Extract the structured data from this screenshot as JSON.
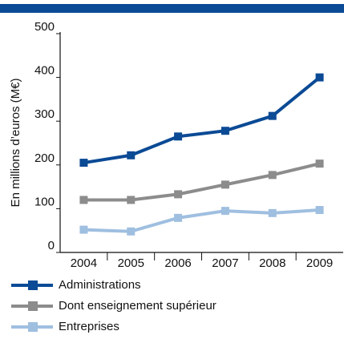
{
  "chart_data": {
    "type": "line",
    "ylabel": "En millions d’euros (M€)",
    "categories": [
      "2004",
      "2005",
      "2006",
      "2007",
      "2008",
      "2009"
    ],
    "series": [
      {
        "name": "Administrations",
        "color": "#0b4a95",
        "values": [
          205,
          222,
          265,
          278,
          312,
          400
        ]
      },
      {
        "name": "Dont enseignement supérieur",
        "color": "#8c8c8c",
        "values": [
          120,
          120,
          133,
          155,
          177,
          203
        ]
      },
      {
        "name": "Entreprises",
        "color": "#9fbfe0",
        "values": [
          52,
          48,
          79,
          95,
          90,
          97
        ]
      }
    ],
    "ylim": [
      0,
      500
    ],
    "yticks": [
      0,
      100,
      200,
      300,
      400,
      500
    ],
    "grid": false
  }
}
